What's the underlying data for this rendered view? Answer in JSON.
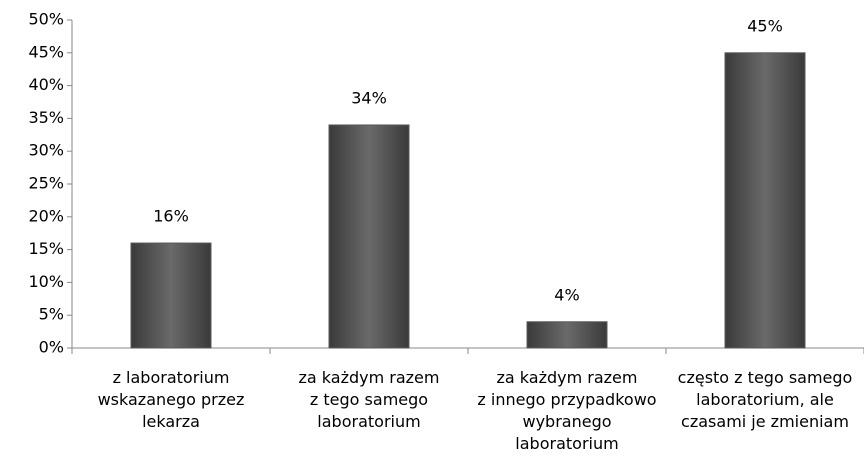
{
  "chart_data": {
    "type": "bar",
    "categories": [
      "z laboratorium\nwskazanego przez\nlekarza",
      "za każdym razem\nz tego samego\nlaboratorium",
      "za każdym razem\nz innego przypadkowo\nwybranego\nlaboratorium",
      "często z tego samego\nlaboratorium, ale\nczasami je zmieniam"
    ],
    "values": [
      16,
      34,
      4,
      45
    ],
    "value_labels": [
      "16%",
      "34%",
      "4%",
      "45%"
    ],
    "color": "#595959",
    "ylim": [
      0,
      50
    ],
    "yticks": [
      {
        "value": 0,
        "label": "0%"
      },
      {
        "value": 5,
        "label": "5%"
      },
      {
        "value": 10,
        "label": "10%"
      },
      {
        "value": 15,
        "label": "15%"
      },
      {
        "value": 20,
        "label": "20%"
      },
      {
        "value": 25,
        "label": "25%"
      },
      {
        "value": 30,
        "label": "30%"
      },
      {
        "value": 35,
        "label": "35%"
      },
      {
        "value": 40,
        "label": "40%"
      },
      {
        "value": 45,
        "label": "45%"
      },
      {
        "value": 50,
        "label": "50%"
      }
    ],
    "grid": false
  }
}
